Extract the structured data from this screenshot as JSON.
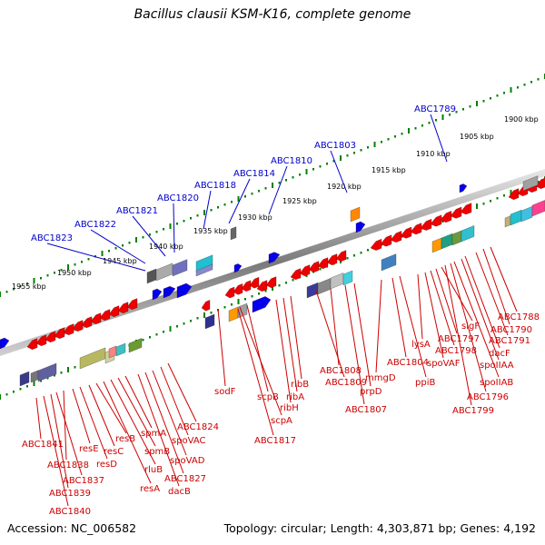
{
  "title": "Bacillus clausii KSM-K16, complete genome",
  "accession": "Accession: NC_006582",
  "topology": "Topology: circular; Length: 4,303,871 bp; Genes: 4,192",
  "scale_labels": [
    "1900 kbp",
    "1905 kbp",
    "1910 kbp",
    "1915 kbp",
    "1920 kbp",
    "1925 kbp",
    "1930 kbp",
    "1935 kbp",
    "1940 kbp",
    "1945 kbp",
    "1950 kbp",
    "1955 kbp"
  ],
  "top_labels": [
    "ABC1789",
    "ABC1803",
    "ABC1810",
    "ABC1814",
    "ABC1818",
    "ABC1820",
    "ABC1821",
    "ABC1822",
    "ABC1823"
  ],
  "bottom_labels": [
    "ABC1788",
    "ABC1790",
    "ABC1791",
    "dacF",
    "spoIIAA",
    "spoIIAB",
    "ABC1796",
    "ABC1799",
    "sigF",
    "ABC1797",
    "ABC1798",
    "spoVAF",
    "lysA",
    "ppiB",
    "ABC1804",
    "mmgD",
    "prpD",
    "ABC1807",
    "ABC1808",
    "ABC1809",
    "ribB",
    "ribA",
    "ribH",
    "scpB",
    "scpA",
    "ABC1817",
    "sodF",
    "ABC1824",
    "spoVAC",
    "spoVAD",
    "ABC1827",
    "dacB",
    "spmA",
    "spmB",
    "rluB",
    "resA",
    "resB",
    "resC",
    "resD",
    "resE",
    "ABC1838",
    "ABC1837",
    "ABC1839",
    "ABC1840",
    "ABC1841"
  ],
  "colors": {
    "forward_gene": "#0000ee",
    "reverse_gene": "#ee0000",
    "backbone": "#888888",
    "tick": "#008000",
    "label_blue": "#0000cc",
    "label_red": "#cc0000"
  }
}
